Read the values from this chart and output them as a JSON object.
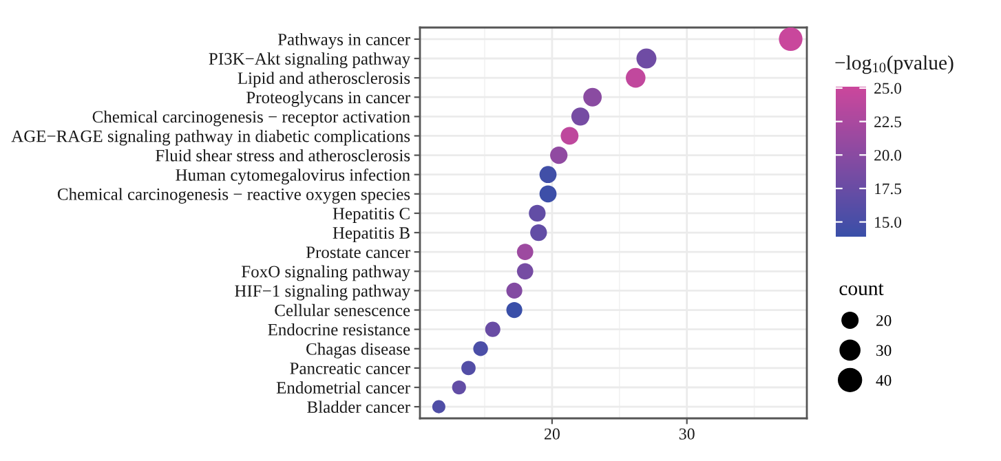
{
  "chart_data": {
    "type": "bubble",
    "orientation": "horizontal",
    "marker": "circle",
    "categories": [
      "Pathways in cancer",
      "PI3K−Akt signaling pathway",
      "Lipid and atherosclerosis",
      "Proteoglycans in cancer",
      "Chemical carcinogenesis − receptor activation",
      "AGE−RAGE signaling pathway in diabetic complications",
      "Fluid shear stress and atherosclerosis",
      "Human cytomegalovirus infection",
      "Chemical carcinogenesis − reactive oxygen species",
      "Hepatitis C",
      "Hepatitis B",
      "Prostate cancer",
      "FoxO signaling pathway",
      "HIF−1 signaling pathway",
      "Cellular senescence",
      "Endocrine resistance",
      "Chagas disease",
      "Pancreatic cancer",
      "Endometrial cancer",
      "Bladder cancer"
    ],
    "values": [
      37.7,
      27.0,
      26.2,
      23.0,
      22.1,
      21.3,
      20.5,
      19.7,
      19.7,
      18.9,
      19.0,
      18.0,
      18.0,
      17.2,
      17.2,
      15.6,
      14.7,
      13.8,
      13.1,
      11.6
    ],
    "sizes": [
      37.7,
      27.0,
      26.2,
      23.0,
      22.1,
      21.3,
      20.5,
      19.7,
      19.7,
      18.9,
      19.0,
      18.0,
      18.0,
      17.2,
      17.2,
      15.6,
      14.7,
      13.8,
      13.1,
      11.6
    ],
    "cvalues": [
      24.8,
      18.0,
      24.2,
      20.0,
      18.5,
      24.0,
      20.5,
      14.5,
      14.2,
      17.0,
      17.0,
      21.5,
      18.5,
      19.5,
      13.9,
      17.5,
      15.2,
      15.8,
      17.0,
      15.5
    ],
    "size_legend": [
      20,
      30,
      40
    ],
    "legend_title": "count",
    "clabel": "−log$_{10}$(pvalue)",
    "clim": [
      13.9,
      25.1
    ],
    "cticks": [
      {
        "value": 15,
        "label": "15.0"
      },
      17.5,
      {
        "value": 20,
        "label": "20.0"
      },
      22.5,
      {
        "value": 25,
        "label": "25.0"
      }
    ],
    "xlim": [
      10.2,
      38.9
    ],
    "xticks": [
      20,
      30
    ],
    "grid": true
  }
}
